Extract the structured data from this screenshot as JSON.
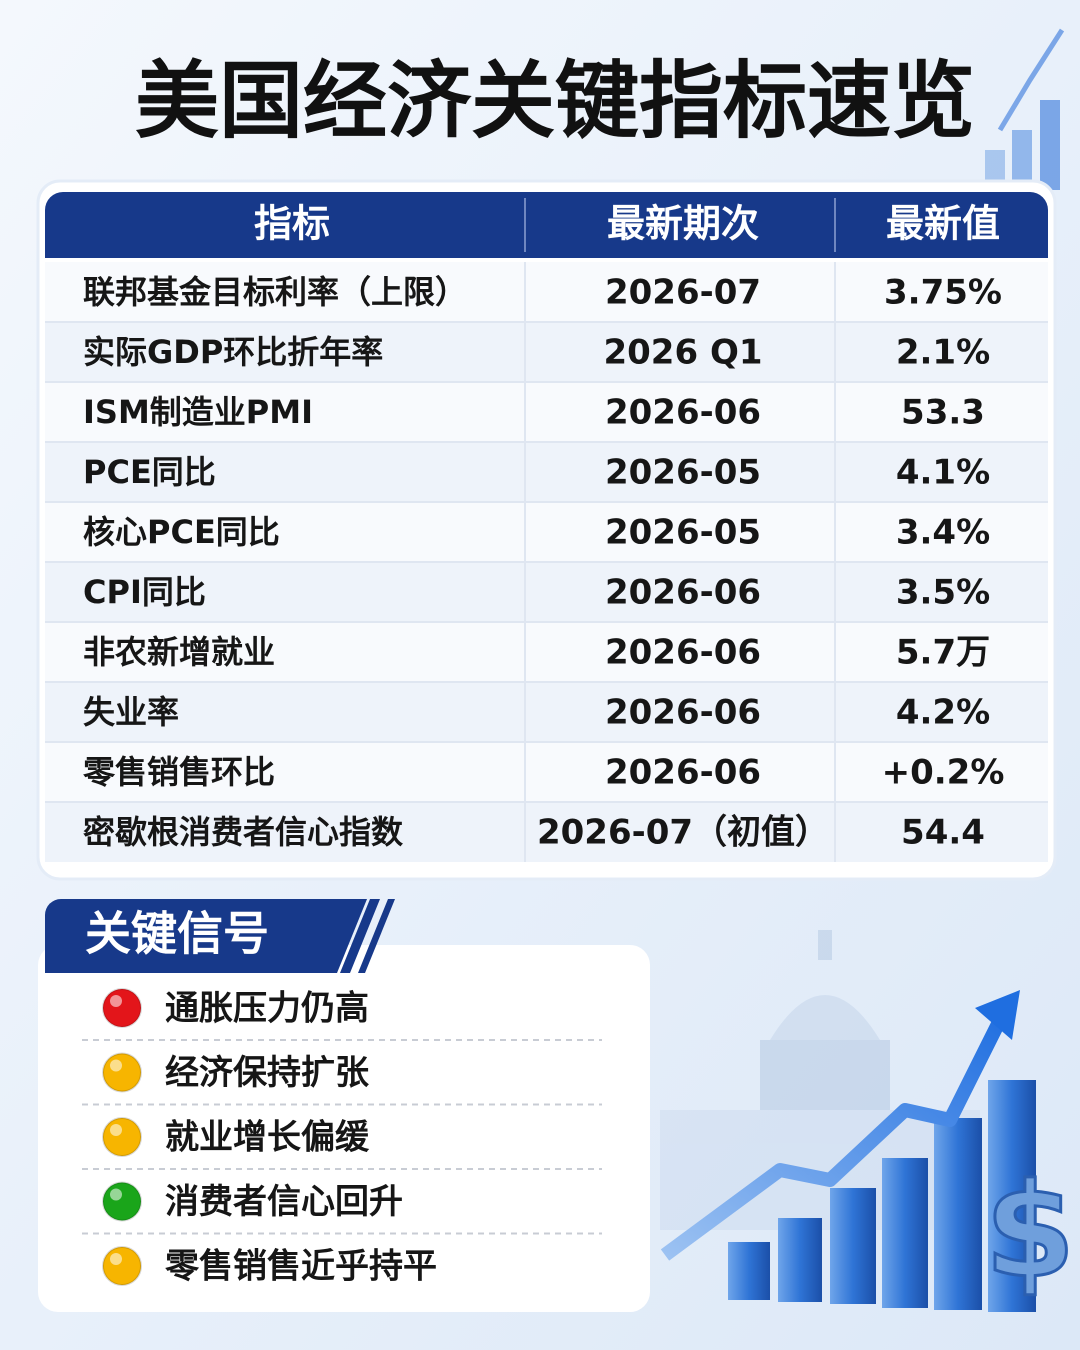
{
  "header": {
    "title": "美国经济关键指标速览"
  },
  "table": {
    "columns": [
      "指标",
      "最新期次",
      "最新值"
    ],
    "rows": [
      [
        "联邦基金目标利率（上限）",
        "2026-07",
        "3.75%"
      ],
      [
        "实际GDP环比折年率",
        "2026 Q1",
        "2.1%"
      ],
      [
        "ISM制造业PMI",
        "2026-06",
        "53.3"
      ],
      [
        "PCE同比",
        "2026-05",
        "4.1%"
      ],
      [
        "核心PCE同比",
        "2026-05",
        "3.4%"
      ],
      [
        "CPI同比",
        "2026-06",
        "3.5%"
      ],
      [
        "非农新增就业",
        "2026-06",
        "5.7万"
      ],
      [
        "失业率",
        "2026-06",
        "4.2%"
      ],
      [
        "零售销售环比",
        "2026-06",
        "+0.2%"
      ],
      [
        "密歇根消费者信心指数",
        "2026-07（初值）",
        "54.4"
      ]
    ]
  },
  "signals": {
    "title": "关键信号",
    "items": [
      {
        "label": "通胀压力仍高",
        "color": "#e3151a"
      },
      {
        "label": "经济保持扩张",
        "color": "#f7b500"
      },
      {
        "label": "就业增长偏缓",
        "color": "#f7b500"
      },
      {
        "label": "消费者信心回升",
        "color": "#1aa51a"
      },
      {
        "label": "零售销售近乎持平",
        "color": "#f7b500"
      }
    ]
  }
}
